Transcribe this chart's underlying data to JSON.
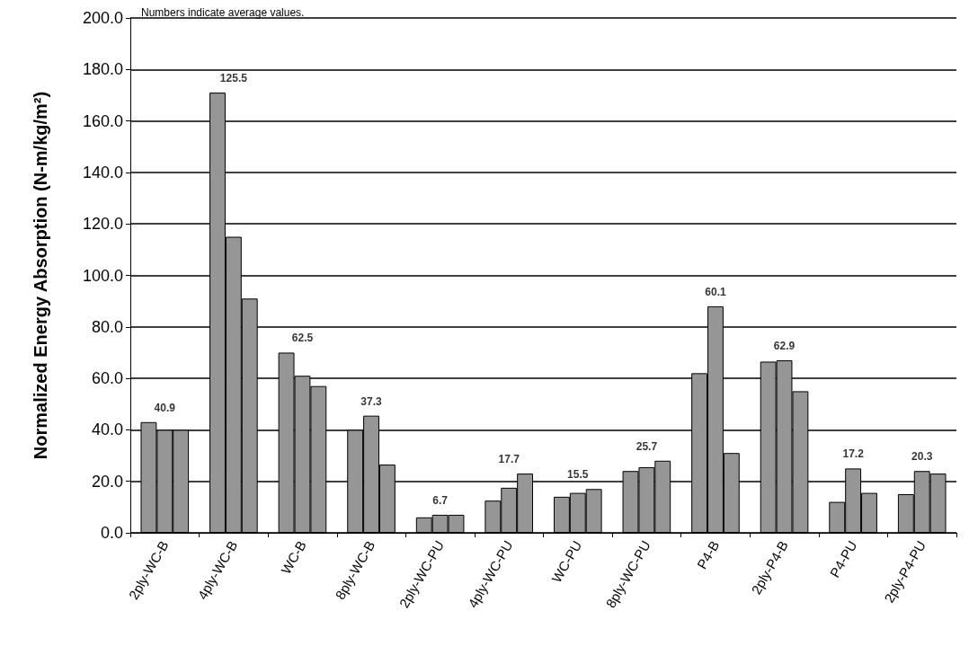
{
  "chart_data": {
    "type": "bar",
    "ylabel": "Normalized Energy Absorption (N-m/kg/m²)",
    "categories": [
      "2ply-WC-B",
      "4ply-WC-B",
      "WC-B",
      "8ply-WC-B",
      "2ply-WC-PU",
      "4ply-WC-PU",
      "WC-PU",
      "8ply-WC-PU",
      "P4-B",
      "2ply-P4-B",
      "P4-PU",
      "2ply-P4-PU"
    ],
    "series": [
      {
        "color": "#969696",
        "values": [
          43,
          171,
          70,
          40,
          6,
          12.5,
          14,
          24,
          62,
          66.5,
          12,
          15
        ]
      },
      {
        "color": "#969696",
        "values": [
          40,
          115,
          61,
          45.5,
          7,
          17.5,
          15.5,
          25.5,
          88,
          67,
          25,
          24
        ]
      },
      {
        "color": "#969696",
        "values": [
          40,
          91,
          57,
          26.5,
          7,
          23,
          17,
          28,
          31,
          55,
          15.5,
          23
        ]
      }
    ],
    "ylim": [
      0,
      200
    ],
    "yticks": [
      {
        "value": 0,
        "label": "0.0"
      },
      {
        "value": 20,
        "label": "20.0"
      },
      {
        "value": 40,
        "label": "40.0"
      },
      {
        "value": 60,
        "label": "60.0"
      },
      {
        "value": 80,
        "label": "80.0"
      },
      {
        "value": 100,
        "label": "100.0"
      },
      {
        "value": 120,
        "label": "120.0"
      },
      {
        "value": 140,
        "label": "140.0"
      },
      {
        "value": 160,
        "label": "160.0"
      },
      {
        "value": 180,
        "label": "180.0"
      },
      {
        "value": 200,
        "label": "200.0"
      }
    ],
    "grid": "y",
    "annotations": [
      "Numbers indicate average values.",
      "40.9",
      "125.5",
      "62.5",
      "37.3",
      "6.7",
      "17.7",
      "15.5",
      "25.7",
      "60.1",
      "62.9",
      "17.2",
      "20.3"
    ]
  }
}
